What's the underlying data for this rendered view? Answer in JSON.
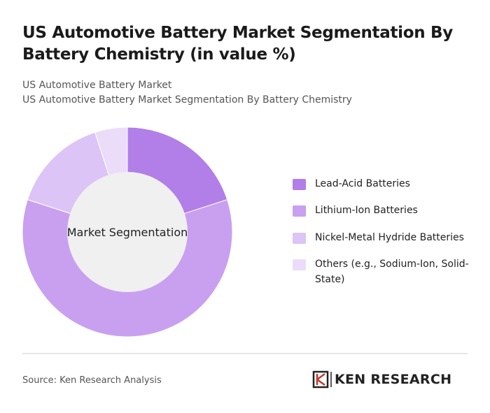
{
  "chart_data": {
    "type": "pie",
    "title": "US Automotive Battery Market Segmentation By Battery Chemistry (in value %)",
    "subtitle": [
      "US Automotive Battery Market",
      "US Automotive Battery Market Segmentation By Battery Chemistry"
    ],
    "center_label": "Market Segmentation",
    "categories": [
      "Lead-Acid Batteries",
      "Lithium-Ion Batteries",
      "Nickel-Metal Hydride Batteries",
      "Others (e.g., Sodium-Ion, Solid-State)"
    ],
    "values": [
      20,
      60,
      15,
      5
    ],
    "colors": [
      "#b27ee8",
      "#c9a0f0",
      "#dcc4f6",
      "#ebdcfa"
    ],
    "source": "Source: Ken Research Analysis",
    "logo": "KEN RESEARCH"
  }
}
